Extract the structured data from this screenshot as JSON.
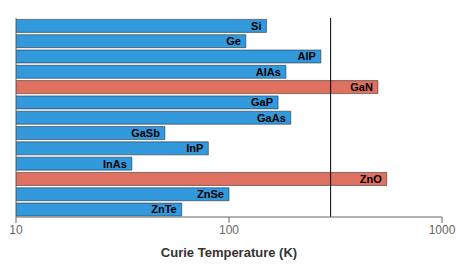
{
  "chart_data": {
    "type": "bar",
    "orientation": "horizontal",
    "categories": [
      "Si",
      "Ge",
      "AlP",
      "AlAs",
      "GaN",
      "GaP",
      "GaAs",
      "GaSb",
      "InP",
      "InAs",
      "ZnO",
      "ZnSe",
      "ZnTe"
    ],
    "values": [
      150,
      120,
      270,
      185,
      500,
      170,
      195,
      50,
      80,
      35,
      550,
      100,
      60
    ],
    "colors": [
      "#3399DD",
      "#3399DD",
      "#3399DD",
      "#3399DD",
      "#E07060",
      "#3399DD",
      "#3399DD",
      "#3399DD",
      "#3399DD",
      "#3399DD",
      "#E07060",
      "#3399DD",
      "#3399DD"
    ],
    "xlabel": "Curie Temperature (K)",
    "xlim": [
      10,
      1000
    ],
    "xticks": [
      10,
      100,
      1000
    ],
    "log": "x",
    "grid": false,
    "tick_labels": "x",
    "vlines": [
      300
    ]
  }
}
